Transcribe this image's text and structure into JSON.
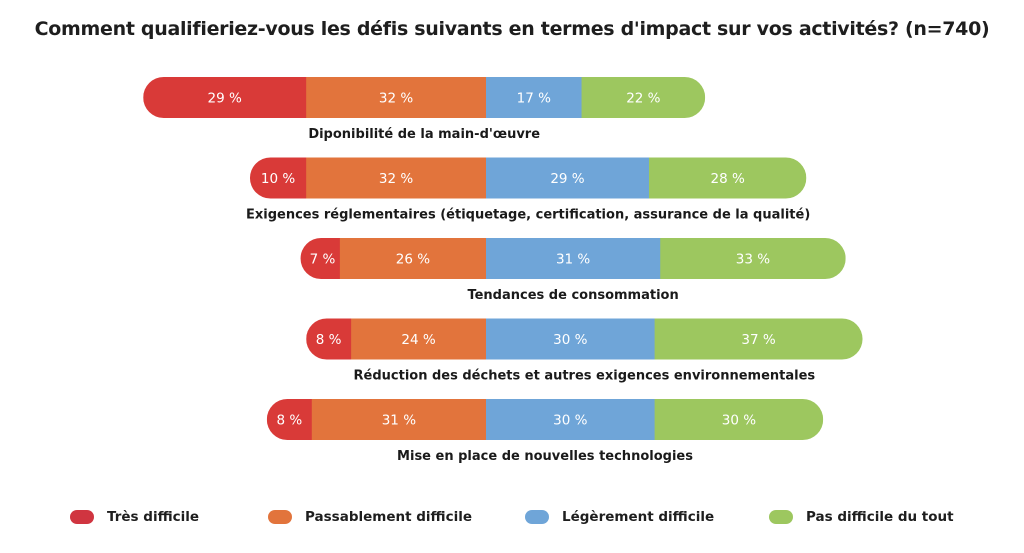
{
  "chart_data": {
    "type": "bar",
    "orientation": "horizontal-diverging-stacked",
    "title": "Comment qualifieriez-vous les défis suivants en termes d'impact sur vos activités? (n=740)",
    "categories": [
      "Diponibilité de la main-d'œuvre",
      "Exigences réglementaires (étiquetage, certification, assurance de la qualité)",
      "Tendances de consommation",
      "Réduction des déchets et autres exigences environnementales",
      "Mise en place de nouvelles technologies"
    ],
    "series": [
      {
        "name": "Très difficile",
        "color": "#d93a38",
        "values": [
          29,
          10,
          7,
          8,
          8
        ]
      },
      {
        "name": "Passablement difficile",
        "color": "#e2743c",
        "values": [
          32,
          32,
          26,
          24,
          31
        ]
      },
      {
        "name": "Légèrement difficile",
        "color": "#6fa5d8",
        "values": [
          17,
          29,
          31,
          30,
          30
        ]
      },
      {
        "name": "Pas difficile du tout",
        "color": "#9dc75f",
        "values": [
          22,
          28,
          33,
          37,
          30
        ]
      }
    ],
    "value_suffix": " %",
    "legend_position": "bottom",
    "grid": false
  }
}
